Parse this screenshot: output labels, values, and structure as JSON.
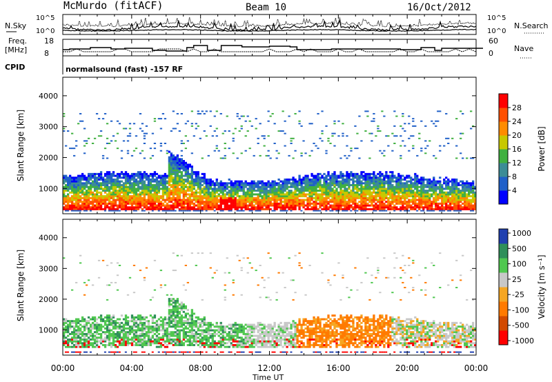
{
  "header": {
    "station": "McMurdo (fitACF)",
    "beam": "Beam 10",
    "date": "16/Oct/2012"
  },
  "noise_panel": {
    "left_label": "N.Sky",
    "right_label": "N.Search",
    "left_ticks": [
      "10^5",
      "10^0"
    ],
    "right_ticks": [
      "10^5",
      "10^0"
    ]
  },
  "freq_panel": {
    "left_label_1": "Freq.",
    "left_label_2": "[MHz]",
    "left_ticks": [
      "18",
      "8"
    ],
    "right_label": "Nave",
    "right_ticks": [
      "60",
      "0"
    ]
  },
  "cpid": {
    "label": "CPID",
    "program": "normalsound (fast) -157 RF"
  },
  "colors": {
    "power_scale": [
      "#0000ff",
      "#2060c8",
      "#3c8c96",
      "#40b040",
      "#c8c800",
      "#ff8c00",
      "#ff5000",
      "#ff0000"
    ],
    "velocity_scale": [
      "#ff0000",
      "#d24a00",
      "#ff7a00",
      "#f5a623",
      "#c8c8c8",
      "#50c850",
      "#2f8f5a",
      "#2040b0"
    ]
  },
  "chart_data": [
    {
      "type": "heatmap",
      "panel": "power",
      "ylabel": "Slant Range [km]",
      "yticks": [
        1000,
        2000,
        3000,
        4000
      ],
      "ylim": [
        180,
        4600
      ],
      "colorbar_label": "Power [dB]",
      "colorbar_ticks": [
        4,
        8,
        12,
        16,
        20,
        24,
        28
      ],
      "colorbar_range": [
        0,
        32
      ]
    },
    {
      "type": "heatmap",
      "panel": "velocity",
      "ylabel": "Slant Range [km]",
      "yticks": [
        1000,
        2000,
        3000,
        4000
      ],
      "ylim": [
        180,
        4600
      ],
      "colorbar_label": "Velocity [m s⁻¹]",
      "colorbar_ticks": [
        "1000",
        "500",
        "100",
        "25",
        "-25",
        "-100",
        "-500",
        "-1000"
      ]
    },
    {
      "type": "line",
      "panel": "time_axis",
      "xlabel": "Time UT",
      "xticks": [
        "00:00",
        "04:00",
        "08:00",
        "12:00",
        "16:00",
        "20:00",
        "00:00"
      ],
      "xlim_hours": [
        0,
        24
      ]
    }
  ]
}
